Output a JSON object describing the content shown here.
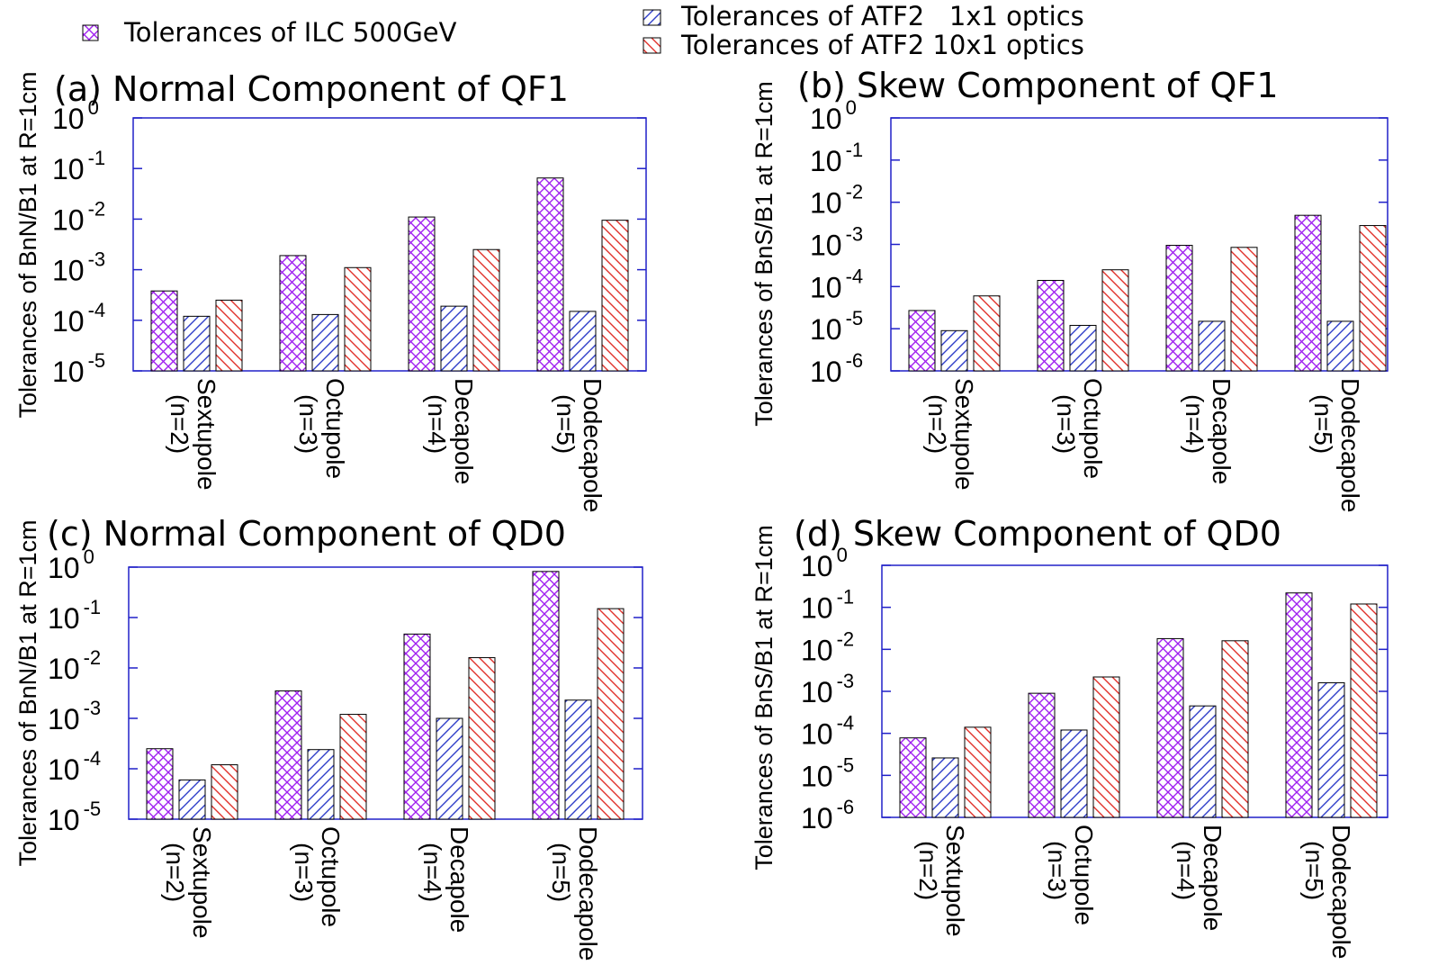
{
  "legend": {
    "items": [
      {
        "label": "Tolerances of ILC 500GeV",
        "color": "#a020f0",
        "pattern": "crosshatch"
      },
      {
        "label": "Tolerances of ATF2   1x1 optics",
        "color": "#2f3ec8",
        "pattern": "diag-right"
      },
      {
        "label": "Tolerances of ATF2 10x1 optics",
        "color": "#e0302a",
        "pattern": "diag-left"
      }
    ]
  },
  "chart_data": [
    {
      "type": "bar",
      "title": "(a) Normal Component of QF1",
      "ylabel": "Tolerances of BnN/B1 at R=1cm",
      "yscale": "log",
      "ylim": [
        1e-05,
        1
      ],
      "ytick_exponents": [
        "0",
        "-1",
        "-2",
        "-3",
        "-4",
        "-5"
      ],
      "categories": [
        {
          "line1": "Sextupole",
          "line2": "(n=2)"
        },
        {
          "line1": "Octupole",
          "line2": "(n=3)"
        },
        {
          "line1": "Decapole",
          "line2": "(n=4)"
        },
        {
          "line1": "Dodecapole",
          "line2": "(n=5)"
        }
      ],
      "series": [
        {
          "name": "Tolerances of ILC 500GeV",
          "values": [
            0.00038,
            0.0019,
            0.011,
            0.065
          ]
        },
        {
          "name": "Tolerances of ATF2   1x1 optics",
          "values": [
            0.00012,
            0.00013,
            0.00019,
            0.00015
          ]
        },
        {
          "name": "Tolerances of ATF2 10x1 optics",
          "values": [
            0.00025,
            0.0011,
            0.0025,
            0.0095
          ]
        }
      ]
    },
    {
      "type": "bar",
      "title": "(b) Skew Component of QF1",
      "ylabel": "Tolerances of BnS/B1 at R=1cm",
      "yscale": "log",
      "ylim": [
        1e-06,
        1
      ],
      "ytick_exponents": [
        "0",
        "-1",
        "-2",
        "-3",
        "-4",
        "-5",
        "-6"
      ],
      "categories": [
        {
          "line1": "Sextupole",
          "line2": "(n=2)"
        },
        {
          "line1": "Octupole",
          "line2": "(n=3)"
        },
        {
          "line1": "Decapole",
          "line2": "(n=4)"
        },
        {
          "line1": "Dodecapole",
          "line2": "(n=5)"
        }
      ],
      "series": [
        {
          "name": "Tolerances of ILC 500GeV",
          "values": [
            2.7e-05,
            0.00014,
            0.00095,
            0.0049
          ]
        },
        {
          "name": "Tolerances of ATF2   1x1 optics",
          "values": [
            9e-06,
            1.2e-05,
            1.5e-05,
            1.5e-05
          ]
        },
        {
          "name": "Tolerances of ATF2 10x1 optics",
          "values": [
            6e-05,
            0.00025,
            0.00085,
            0.0028
          ]
        }
      ]
    },
    {
      "type": "bar",
      "title": "(c) Normal Component of QD0",
      "ylabel": "Tolerances of BnN/B1 at R=1cm",
      "yscale": "log",
      "ylim": [
        1e-05,
        1
      ],
      "ytick_exponents": [
        "0",
        "-1",
        "-2",
        "-3",
        "-4",
        "-5"
      ],
      "categories": [
        {
          "line1": "Sextupole",
          "line2": "(n=2)"
        },
        {
          "line1": "Octupole",
          "line2": "(n=3)"
        },
        {
          "line1": "Decapole",
          "line2": "(n=4)"
        },
        {
          "line1": "Dodecapole",
          "line2": "(n=5)"
        }
      ],
      "series": [
        {
          "name": "Tolerances of ILC 500GeV",
          "values": [
            0.00025,
            0.0035,
            0.047,
            0.82
          ]
        },
        {
          "name": "Tolerances of ATF2   1x1 optics",
          "values": [
            6e-05,
            0.00024,
            0.001,
            0.0023
          ]
        },
        {
          "name": "Tolerances of ATF2 10x1 optics",
          "values": [
            0.00012,
            0.0012,
            0.016,
            0.15
          ]
        }
      ]
    },
    {
      "type": "bar",
      "title": "(d) Skew Component of QD0",
      "ylabel": "Tolerances of BnS/B1 at R=1cm",
      "yscale": "log",
      "ylim": [
        1e-06,
        1
      ],
      "ytick_exponents": [
        "0",
        "-1",
        "-2",
        "-3",
        "-4",
        "-5",
        "-6"
      ],
      "categories": [
        {
          "line1": "Sextupole",
          "line2": "(n=2)"
        },
        {
          "line1": "Octupole",
          "line2": "(n=3)"
        },
        {
          "line1": "Decapole",
          "line2": "(n=4)"
        },
        {
          "line1": "Dodecapole",
          "line2": "(n=5)"
        }
      ],
      "series": [
        {
          "name": "Tolerances of ILC 500GeV",
          "values": [
            7.8e-05,
            0.0009,
            0.018,
            0.22
          ]
        },
        {
          "name": "Tolerances of ATF2   1x1 optics",
          "values": [
            2.6e-05,
            0.00012,
            0.00045,
            0.0016
          ]
        },
        {
          "name": "Tolerances of ATF2 10x1 optics",
          "values": [
            0.00014,
            0.0022,
            0.016,
            0.12
          ]
        }
      ]
    }
  ]
}
